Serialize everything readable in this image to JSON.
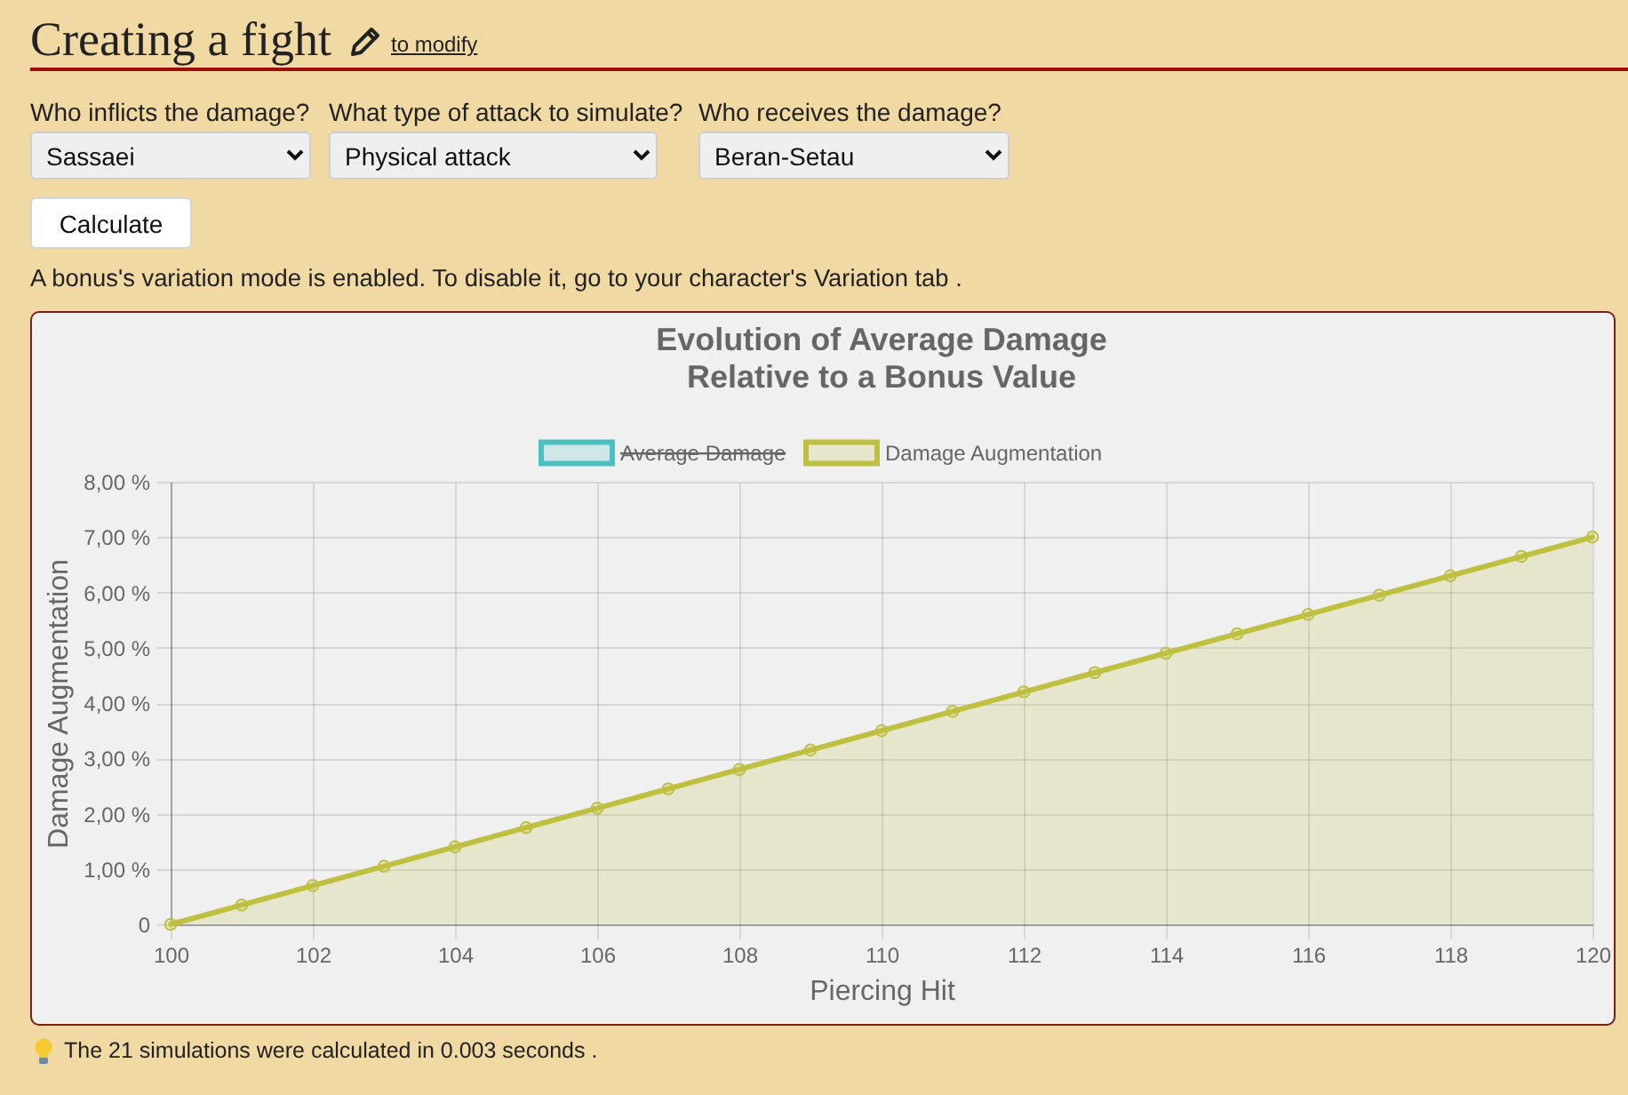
{
  "chart_data": {
    "type": "area",
    "title": "Evolution of Average Damage\nRelative to a Bonus Value",
    "xlabel": "Piercing Hit",
    "ylabel": "Damage Augmentation",
    "x": [
      100,
      101,
      102,
      103,
      104,
      105,
      106,
      107,
      108,
      109,
      110,
      111,
      112,
      113,
      114,
      115,
      116,
      117,
      118,
      119,
      120
    ],
    "series": [
      {
        "name": "Average Damage",
        "color": "#4bc0c0",
        "values": [
          null,
          null,
          null,
          null,
          null,
          null,
          null,
          null,
          null,
          null,
          null,
          null,
          null,
          null,
          null,
          null,
          null,
          null,
          null,
          null,
          null
        ]
      },
      {
        "name": "Damage Augmentation",
        "color": "#c0c040",
        "values": [
          0,
          0.35,
          0.7,
          1.05,
          1.4,
          1.75,
          2.1,
          2.45,
          2.8,
          3.15,
          3.5,
          3.85,
          4.2,
          4.55,
          4.9,
          5.25,
          5.6,
          5.95,
          6.3,
          6.65,
          7
        ]
      }
    ],
    "xlim": [
      100,
      120
    ],
    "xticks": [
      100,
      102,
      104,
      106,
      108,
      110,
      112,
      114,
      116,
      118,
      120
    ],
    "ylim": [
      0,
      8
    ],
    "yticks": [
      0,
      {
        "value": 1,
        "label": "1,00 %"
      },
      {
        "value": 2,
        "label": "2,00 %"
      },
      {
        "value": 3,
        "label": "3,00 %"
      },
      {
        "value": 4,
        "label": "4,00 %"
      },
      {
        "value": 5,
        "label": "5,00 %"
      },
      {
        "value": 6,
        "label": "6,00 %"
      },
      {
        "value": 7,
        "label": "7,00 %"
      },
      {
        "value": 8,
        "label": "8,00 %"
      }
    ],
    "grid": true,
    "legend": "top",
    "marker": "circle",
    "annotations": [
      "Creating a fight",
      "to modify",
      "Who inflicts the damage?",
      "Sassaei",
      "What type of attack to simulate?",
      "Physical attack",
      "Who receives the damage?",
      "Beran-Setau",
      "Calculate",
      "A bonus's variation mode is enabled. To disable it, go to your character's Variation tab .",
      "The 21 simulations were calculated in 0.003 seconds ."
    ]
  }
}
